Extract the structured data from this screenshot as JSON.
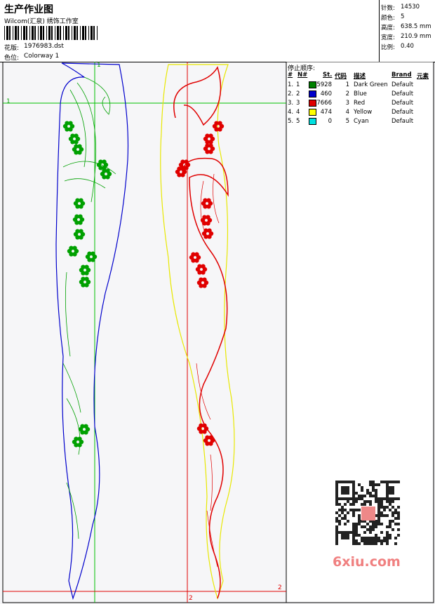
{
  "header": {
    "title": "生产作业图",
    "studio": "Wilcom(汇泉) 绣饰工作室",
    "design_label": "花版:",
    "design_file": "1976983.dst",
    "colorway_label": "色位:",
    "colorway": "Colorway 1"
  },
  "stats": [
    {
      "label": "针数:",
      "value": "14530"
    },
    {
      "label": "颜色:",
      "value": "5"
    },
    {
      "label": "高度:",
      "value": "638.5 mm"
    },
    {
      "label": "宽度:",
      "value": "210.9 mm"
    },
    {
      "label": "比例:",
      "value": "0.40"
    }
  ],
  "stop_sequence": {
    "title": "停止顺序:",
    "columns": [
      "#",
      "N#",
      "St.",
      "代码",
      "描述",
      "Brand",
      "元素"
    ],
    "rows": [
      {
        "cells": [
          "1.",
          "1",
          5928,
          "1",
          "Dark Green",
          "Default"
        ],
        "color": "#008000"
      },
      {
        "cells": [
          "2.",
          "2",
          460,
          "2",
          "Blue",
          "Default"
        ],
        "color": "#0000cc"
      },
      {
        "cells": [
          "3.",
          "3",
          7666,
          "3",
          "Red",
          "Default"
        ],
        "color": "#e00000"
      },
      {
        "cells": [
          "4.",
          "4",
          474,
          "4",
          "Yellow",
          "Default"
        ],
        "color": "#ffff00"
      },
      {
        "cells": [
          "5.",
          "5",
          0,
          "5",
          "Cyan",
          "Default"
        ],
        "color": "#00e0e0"
      }
    ]
  },
  "markers": [
    "1",
    "2"
  ],
  "watermark": "6xiu.com"
}
